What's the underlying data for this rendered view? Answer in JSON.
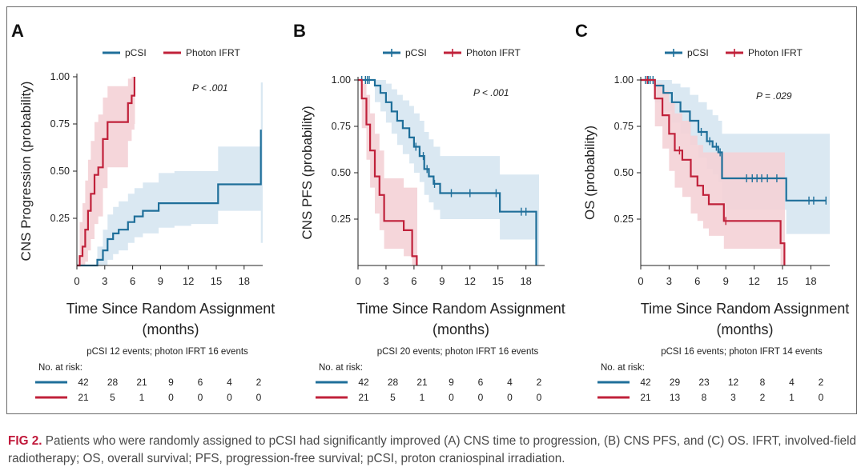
{
  "colors": {
    "pcsi": "#1f6f9a",
    "photon": "#c0213a",
    "pcsi_ci": "#d6e6f1",
    "photon_ci": "#f4d1d6"
  },
  "caption": {
    "label": "FIG 2.",
    "text": "Patients who were randomly assigned to pCSI had significantly improved (A) CNS time to progression, (B) CNS PFS, and (C) OS. IFRT, involved-field radiotherapy; OS, overall survival; PFS, progression-free survival; pCSI, proton craniospinal irradiation."
  },
  "chart_data": [
    {
      "type": "line",
      "panel": "A",
      "ylabel": "CNS Progression (probability)",
      "xlabel_line1": "Time Since Random Assignment",
      "xlabel_line2": "(months)",
      "xlim": [
        0,
        20
      ],
      "ylim": [
        0,
        1
      ],
      "xticks": [
        0,
        3,
        6,
        9,
        12,
        15,
        18
      ],
      "yticks": [
        0.25,
        0.5,
        0.75,
        1.0
      ],
      "ytick_labels": [
        "0.25",
        "0.50",
        "0.75",
        "1.00"
      ],
      "pvalue": "P < .001",
      "legend": [
        "pCSI",
        "Photon IFRT"
      ],
      "censor_marks": false,
      "series": [
        {
          "name": "pCSI",
          "x": [
            0,
            2.2,
            2.8,
            3.3,
            3.9,
            4.5,
            5.5,
            6.2,
            7.1,
            8.8,
            10.5,
            12.3,
            15.2,
            19.5,
            19.8
          ],
          "y": [
            0,
            0.03,
            0.08,
            0.14,
            0.17,
            0.19,
            0.23,
            0.26,
            0.29,
            0.33,
            0.33,
            0.33,
            0.43,
            0.43,
            0.72
          ],
          "ci_lower": [
            0,
            0,
            0,
            0.03,
            0.06,
            0.08,
            0.12,
            0.15,
            0.17,
            0.2,
            0.21,
            0.22,
            0.29,
            0.29,
            0.12
          ],
          "ci_upper": [
            0,
            0.1,
            0.19,
            0.27,
            0.31,
            0.34,
            0.38,
            0.41,
            0.44,
            0.49,
            0.5,
            0.5,
            0.63,
            0.63,
            0.97
          ]
        },
        {
          "name": "Photon IFRT",
          "x": [
            0,
            0.3,
            0.6,
            0.9,
            1.2,
            1.5,
            1.9,
            2.3,
            2.8,
            3.3,
            5.5,
            5.9,
            6.2
          ],
          "y": [
            0,
            0.05,
            0.1,
            0.19,
            0.29,
            0.38,
            0.48,
            0.52,
            0.67,
            0.76,
            0.86,
            0.9,
            1.0
          ],
          "ci_lower": [
            0,
            0,
            0,
            0.02,
            0.08,
            0.14,
            0.22,
            0.26,
            0.41,
            0.52,
            0.66,
            0.72,
            0.75
          ],
          "ci_upper": [
            0,
            0.23,
            0.33,
            0.45,
            0.56,
            0.66,
            0.76,
            0.8,
            0.89,
            0.95,
            0.99,
            1.0,
            1.0
          ]
        }
      ],
      "events_text": "pCSI 12 events; photon IFRT 16 events",
      "risk_title": "No. at risk:",
      "risk_pcsi": [
        "42",
        "28",
        "21",
        "9",
        "6",
        "4",
        "2"
      ],
      "risk_photon": [
        "21",
        "5",
        "1",
        "0",
        "0",
        "0",
        "0"
      ]
    },
    {
      "type": "line",
      "panel": "B",
      "ylabel": "CNS PFS (probability)",
      "xlabel_line1": "Time Since Random Assignment",
      "xlabel_line2": "(months)",
      "xlim": [
        0,
        20
      ],
      "ylim": [
        0,
        1
      ],
      "xticks": [
        0,
        3,
        6,
        9,
        12,
        15,
        18
      ],
      "yticks": [
        0.25,
        0.5,
        0.75,
        1.0
      ],
      "ytick_labels": [
        "0.25",
        "0.50",
        "0.75",
        "1.00"
      ],
      "pvalue": "P < .001",
      "legend": [
        "pCSI",
        "Photon IFRT"
      ],
      "censor_marks": true,
      "series": [
        {
          "name": "pCSI",
          "x": [
            0,
            1.8,
            2.4,
            3.0,
            3.6,
            4.2,
            4.8,
            5.5,
            6.0,
            6.6,
            7.1,
            7.6,
            8.1,
            8.8,
            15.2,
            19.1
          ],
          "y": [
            1.0,
            0.97,
            0.93,
            0.88,
            0.83,
            0.78,
            0.74,
            0.69,
            0.64,
            0.59,
            0.52,
            0.48,
            0.44,
            0.39,
            0.29,
            0.0
          ],
          "ci_lower": [
            1.0,
            0.88,
            0.83,
            0.77,
            0.71,
            0.65,
            0.6,
            0.55,
            0.5,
            0.45,
            0.38,
            0.34,
            0.3,
            0.25,
            0.14,
            0.0
          ],
          "ci_upper": [
            1.0,
            1.0,
            1.0,
            0.98,
            0.95,
            0.92,
            0.89,
            0.86,
            0.82,
            0.78,
            0.72,
            0.68,
            0.64,
            0.59,
            0.49,
            0.49
          ],
          "censors": [
            0.4,
            0.8,
            1.0,
            1.2,
            6.2,
            7.0,
            7.4,
            8.2,
            10.0,
            12.0,
            14.8,
            17.5,
            18.0
          ]
        },
        {
          "name": "Photon IFRT",
          "x": [
            0,
            0.4,
            0.9,
            1.3,
            1.8,
            2.3,
            2.8,
            4.9,
            5.8,
            6.3
          ],
          "y": [
            1.0,
            0.9,
            0.76,
            0.62,
            0.48,
            0.38,
            0.24,
            0.19,
            0.05,
            0.0
          ],
          "ci_lower": [
            1.0,
            0.74,
            0.57,
            0.42,
            0.28,
            0.19,
            0.09,
            0.05,
            0.0,
            0.0
          ],
          "ci_upper": [
            1.0,
            0.98,
            0.92,
            0.82,
            0.71,
            0.62,
            0.47,
            0.42,
            0.42,
            0.42
          ],
          "censors": []
        }
      ],
      "events_text": "pCSI 20 events; photon IFRT 16 events",
      "risk_title": "No. at risk:",
      "risk_pcsi": [
        "42",
        "28",
        "21",
        "9",
        "6",
        "4",
        "2"
      ],
      "risk_photon": [
        "21",
        "5",
        "1",
        "0",
        "0",
        "0",
        "0"
      ]
    },
    {
      "type": "line",
      "panel": "C",
      "ylabel": "OS (probability)",
      "xlabel_line1": "Time Since Random Assignment",
      "xlabel_line2": "(months)",
      "xlim": [
        0,
        20
      ],
      "ylim": [
        0,
        1
      ],
      "xticks": [
        0,
        3,
        6,
        9,
        12,
        15,
        18
      ],
      "yticks": [
        0.25,
        0.5,
        0.75,
        1.0
      ],
      "ytick_labels": [
        "0.25",
        "0.50",
        "0.75",
        "1.00"
      ],
      "pvalue": "P = .029",
      "legend": [
        "pCSI",
        "Photon IFRT"
      ],
      "censor_marks": true,
      "series": [
        {
          "name": "pCSI",
          "x": [
            0,
            1.5,
            2.4,
            3.3,
            4.2,
            5.2,
            6.1,
            7.0,
            7.6,
            8.2,
            8.6,
            15.4,
            19.6
          ],
          "y": [
            1.0,
            0.97,
            0.93,
            0.88,
            0.83,
            0.78,
            0.72,
            0.67,
            0.64,
            0.61,
            0.47,
            0.35,
            0.35
          ],
          "ci_lower": [
            1.0,
            0.88,
            0.83,
            0.77,
            0.71,
            0.65,
            0.58,
            0.52,
            0.49,
            0.45,
            0.3,
            0.17,
            0.17
          ],
          "ci_upper": [
            1.0,
            1.0,
            1.0,
            0.98,
            0.96,
            0.92,
            0.88,
            0.84,
            0.81,
            0.78,
            0.71,
            0.71,
            0.71
          ],
          "censors": [
            0.5,
            0.8,
            1.0,
            1.3,
            6.4,
            7.3,
            8.0,
            8.4,
            11.2,
            11.8,
            12.3,
            12.8,
            13.4,
            14.4,
            17.8,
            18.3,
            19.6
          ]
        },
        {
          "name": "Photon IFRT",
          "x": [
            0,
            1.5,
            2.3,
            3.0,
            3.6,
            4.4,
            5.3,
            6.0,
            6.6,
            7.2,
            8.8,
            14.8,
            15.2
          ],
          "y": [
            1.0,
            0.9,
            0.81,
            0.71,
            0.62,
            0.57,
            0.48,
            0.43,
            0.38,
            0.33,
            0.24,
            0.12,
            0.0
          ],
          "ci_lower": [
            1.0,
            0.75,
            0.63,
            0.51,
            0.42,
            0.37,
            0.28,
            0.24,
            0.2,
            0.16,
            0.09,
            0.0,
            0.0
          ],
          "ci_upper": [
            1.0,
            0.98,
            0.94,
            0.88,
            0.82,
            0.78,
            0.7,
            0.65,
            0.61,
            0.61,
            0.61,
            0.61,
            0.61
          ],
          "censors": [
            0.7,
            4.1,
            9.0
          ]
        }
      ],
      "events_text": "pCSI 16 events; photon IFRT 14 events",
      "risk_title": "No. at risk:",
      "risk_pcsi": [
        "42",
        "29",
        "23",
        "12",
        "8",
        "4",
        "2"
      ],
      "risk_photon": [
        "21",
        "13",
        "8",
        "3",
        "2",
        "1",
        "0"
      ]
    }
  ]
}
